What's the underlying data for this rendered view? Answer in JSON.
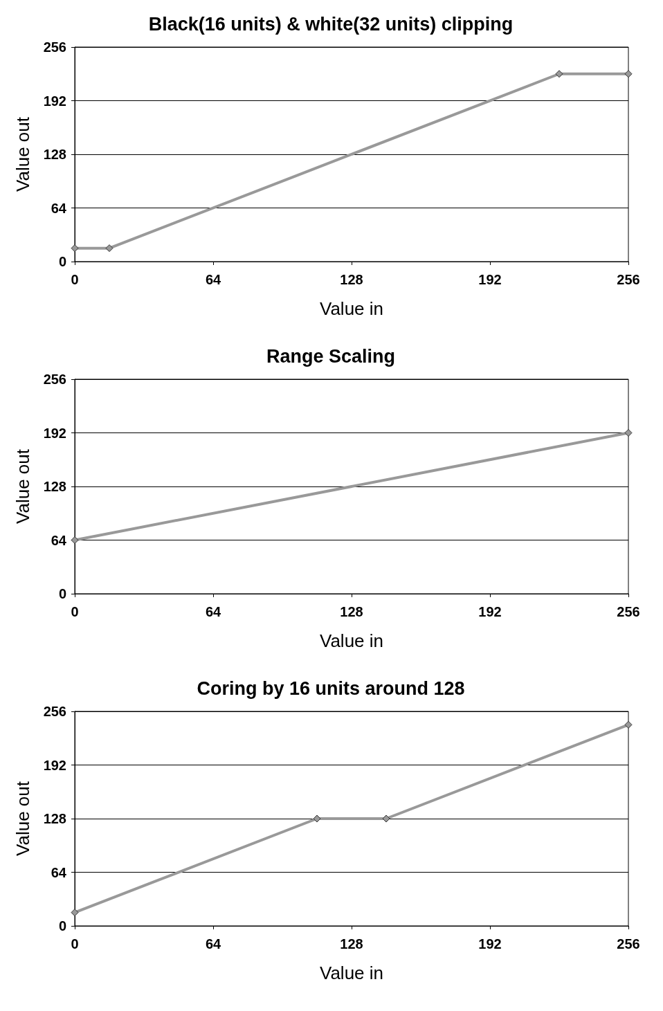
{
  "chart_data": [
    {
      "type": "line",
      "title": "Black(16 units) & white(32 units) clipping",
      "xlabel": "Value in",
      "ylabel": "Value out",
      "x": [
        0,
        16,
        224,
        256
      ],
      "values": [
        16,
        16,
        224,
        224
      ],
      "color": "#999999",
      "xlim": [
        0,
        256
      ],
      "ylim": [
        0,
        256
      ],
      "xticks": [
        0,
        64,
        128,
        192,
        256
      ],
      "yticks": [
        0,
        64,
        128,
        192,
        256
      ],
      "grid": "y",
      "marker": "diamond",
      "line_style": "solid"
    },
    {
      "type": "line",
      "title": "Range Scaling",
      "xlabel": "Value in",
      "ylabel": "Value out",
      "x": [
        0,
        256
      ],
      "values": [
        64,
        192
      ],
      "color": "#999999",
      "xlim": [
        0,
        256
      ],
      "ylim": [
        0,
        256
      ],
      "xticks": [
        0,
        64,
        128,
        192,
        256
      ],
      "yticks": [
        0,
        64,
        128,
        192,
        256
      ],
      "grid": "y",
      "marker": "diamond",
      "line_style": "solid"
    },
    {
      "type": "line",
      "title": "Coring by 16 units around 128",
      "xlabel": "Value in",
      "ylabel": "Value out",
      "x": [
        0,
        112,
        144,
        256
      ],
      "values": [
        16,
        128,
        128,
        240
      ],
      "color": "#999999",
      "xlim": [
        0,
        256
      ],
      "ylim": [
        0,
        256
      ],
      "xticks": [
        0,
        64,
        128,
        192,
        256
      ],
      "yticks": [
        0,
        64,
        128,
        192,
        256
      ],
      "grid": "y",
      "marker": "diamond",
      "line_style": "solid"
    }
  ]
}
